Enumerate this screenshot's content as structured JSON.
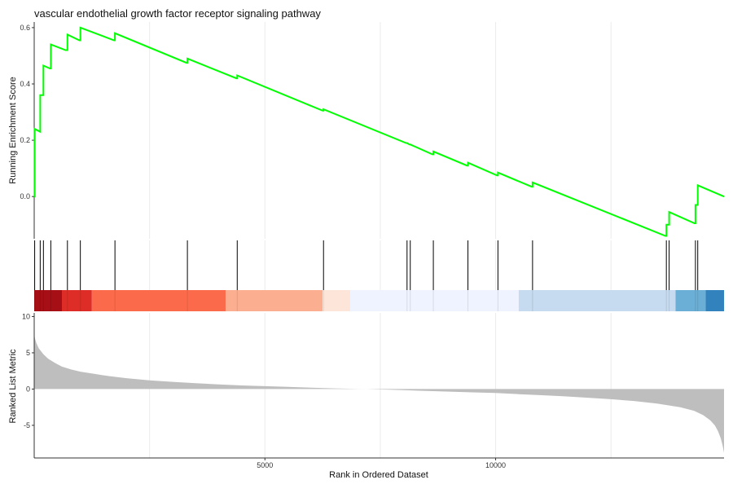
{
  "chart_data": [
    {
      "type": "line",
      "title": "vascular endothelial growth factor receptor signaling pathway",
      "xlabel": "",
      "ylabel": "Running Enrichment Score",
      "xlim": [
        0,
        14950
      ],
      "ylim": [
        -0.15,
        0.62
      ],
      "y_ticks": [
        "0.0",
        "0.2",
        "0.4",
        "0.6"
      ],
      "grid": "vertical",
      "line_color": "#00ff00",
      "hit_positions": [
        10,
        130,
        200,
        360,
        720,
        1000,
        1750,
        3320,
        4400,
        6270,
        8080,
        8150,
        8650,
        9400,
        10050,
        10800,
        13700,
        13760,
        14330,
        14380
      ],
      "series": [
        {
          "x": [
            0,
            10,
            10,
            130,
            130,
            200,
            200,
            340,
            360,
            360,
            680,
            720,
            720,
            980,
            1000,
            1000,
            1730,
            1750,
            1750,
            3300,
            3320,
            3320,
            4380,
            4400,
            4400,
            6250,
            6270,
            6270,
            8060,
            8080,
            8080,
            8130,
            8150,
            8150,
            8630,
            8650,
            8650,
            9380,
            9400,
            9400,
            10030,
            10050,
            10050,
            10780,
            10800,
            10800,
            13680,
            13700,
            13700,
            13740,
            13760,
            13760,
            14310,
            14330,
            14330,
            14360,
            14380,
            14380,
            14950
          ],
          "y": [
            0.0,
            0.0,
            0.24,
            0.23,
            0.36,
            0.36,
            0.465,
            0.455,
            0.455,
            0.54,
            0.52,
            0.52,
            0.575,
            0.555,
            0.555,
            0.6,
            0.555,
            0.555,
            0.58,
            0.475,
            0.475,
            0.49,
            0.42,
            0.42,
            0.43,
            0.305,
            0.305,
            0.31,
            0.19,
            0.19,
            0.19,
            0.185,
            0.185,
            0.185,
            0.15,
            0.15,
            0.16,
            0.11,
            0.11,
            0.12,
            0.075,
            0.075,
            0.085,
            0.035,
            0.035,
            0.05,
            -0.14,
            -0.14,
            -0.1,
            -0.1,
            -0.1,
            -0.055,
            -0.095,
            -0.095,
            -0.03,
            -0.03,
            -0.03,
            0.04,
            0.0
          ]
        }
      ]
    },
    {
      "type": "heatmap",
      "title": "",
      "xlabel": "",
      "ylabel": "",
      "segments": [
        {
          "start": 0,
          "end": 600,
          "color": "#a50f15"
        },
        {
          "start": 600,
          "end": 1250,
          "color": "#de2d26"
        },
        {
          "start": 1250,
          "end": 4150,
          "color": "#fb6a4a"
        },
        {
          "start": 4150,
          "end": 6250,
          "color": "#fcae91"
        },
        {
          "start": 6250,
          "end": 6850,
          "color": "#fee5d9"
        },
        {
          "start": 6850,
          "end": 10500,
          "color": "#eff3ff"
        },
        {
          "start": 10500,
          "end": 13900,
          "color": "#c6dbef"
        },
        {
          "start": 13900,
          "end": 14550,
          "color": "#6baed6"
        },
        {
          "start": 14550,
          "end": 14950,
          "color": "#3182bd"
        }
      ]
    },
    {
      "type": "area",
      "title": "",
      "xlabel": "Rank in Ordered Dataset",
      "ylabel": "Ranked List Metric",
      "xlim": [
        0,
        14950
      ],
      "ylim": [
        -9.5,
        10.5
      ],
      "x_ticks": [
        {
          "value": 5000,
          "label": "5000"
        },
        {
          "value": 10000,
          "label": "10000"
        }
      ],
      "y_ticks": [
        {
          "value": 10,
          "label": "10"
        },
        {
          "value": 5,
          "label": "5"
        },
        {
          "value": 0,
          "label": "0"
        },
        {
          "value": -5,
          "label": "-5"
        }
      ],
      "fill_color": "#bebebe",
      "series": [
        {
          "x": [
            0,
            5,
            20,
            50,
            100,
            200,
            300,
            450,
            600,
            800,
            1000,
            1300,
            1600,
            2000,
            2500,
            3000,
            3500,
            4000,
            4500,
            5000,
            5500,
            6000,
            6500,
            7000,
            7200,
            7500,
            8000,
            8500,
            9000,
            9500,
            10000,
            10500,
            11000,
            11500,
            12000,
            12500,
            13000,
            13500,
            14000,
            14300,
            14500,
            14650,
            14750,
            14820,
            14880,
            14920,
            14950
          ],
          "values": [
            8.0,
            7.4,
            6.9,
            6.3,
            5.6,
            4.8,
            4.2,
            3.6,
            3.1,
            2.7,
            2.4,
            2.1,
            1.8,
            1.5,
            1.2,
            1.0,
            0.8,
            0.65,
            0.5,
            0.4,
            0.3,
            0.2,
            0.1,
            0.03,
            0.0,
            -0.05,
            -0.15,
            -0.25,
            -0.35,
            -0.45,
            -0.55,
            -0.7,
            -0.85,
            -1.0,
            -1.2,
            -1.4,
            -1.65,
            -2.0,
            -2.5,
            -3.0,
            -3.6,
            -4.3,
            -5.0,
            -5.8,
            -6.8,
            -7.8,
            -8.8
          ]
        }
      ]
    }
  ]
}
